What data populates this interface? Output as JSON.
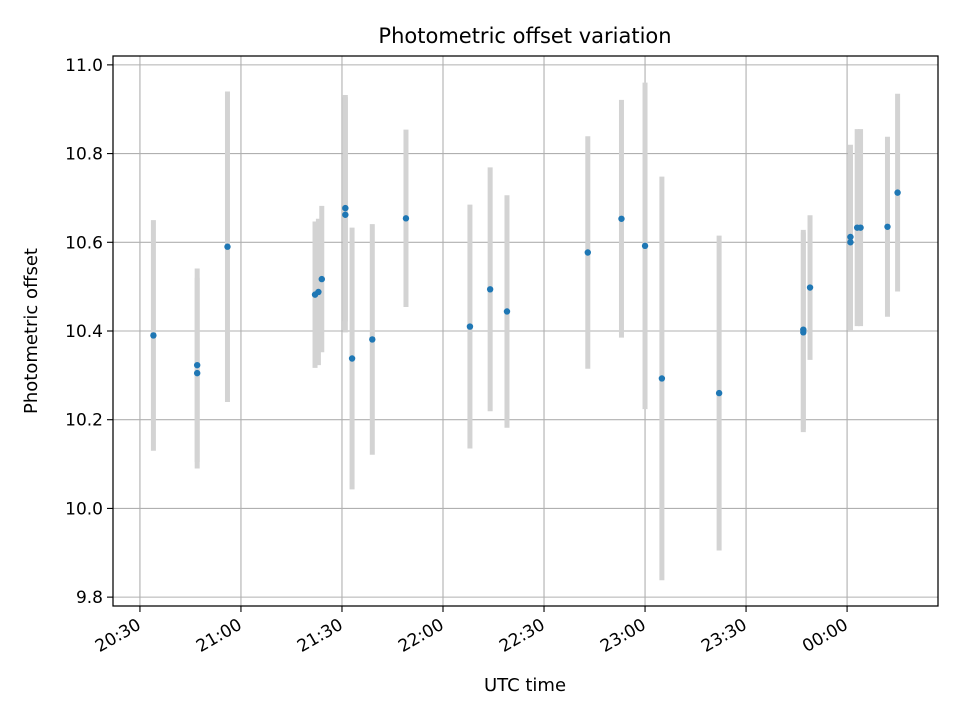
{
  "chart_data": {
    "type": "scatter",
    "title": "Photometric offset variation",
    "xlabel": "UTC time",
    "ylabel": "Photometric offset",
    "x_unit": "UTC hh:mm, minutes relative to 00:00 on the following day",
    "xlim_utc": [
      "20:22",
      "00:27"
    ],
    "ylim": [
      9.78,
      11.02
    ],
    "grid": true,
    "x_tick_labels": [
      "20:30",
      "21:00",
      "21:30",
      "22:00",
      "22:30",
      "23:00",
      "23:30",
      "00:00"
    ],
    "y_tick_labels": [
      "9.8",
      "10.0",
      "10.2",
      "10.4",
      "10.6",
      "10.8",
      "11.0"
    ],
    "colors": {
      "point": "#1f77b4",
      "errorbar": "#d3d3d3",
      "grid": "#b0b0b0"
    },
    "points": [
      {
        "t": "20:34",
        "y": 10.39,
        "err": 0.26
      },
      {
        "t": "20:47",
        "y": 10.305,
        "err": 0.215
      },
      {
        "t": "20:47",
        "y": 10.323,
        "err": 0.218
      },
      {
        "t": "20:56",
        "y": 10.59,
        "err": 0.35
      },
      {
        "t": "21:22",
        "y": 10.482,
        "err": 0.165
      },
      {
        "t": "21:23",
        "y": 10.488,
        "err": 0.165
      },
      {
        "t": "21:24",
        "y": 10.517,
        "err": 0.165
      },
      {
        "t": "21:31",
        "y": 10.677,
        "err": 0.255
      },
      {
        "t": "21:31",
        "y": 10.662,
        "err": 0.265
      },
      {
        "t": "21:33",
        "y": 10.338,
        "err": 0.295
      },
      {
        "t": "21:39",
        "y": 10.381,
        "err": 0.26
      },
      {
        "t": "21:49",
        "y": 10.654,
        "err": 0.2
      },
      {
        "t": "22:08",
        "y": 10.41,
        "err": 0.275
      },
      {
        "t": "22:14",
        "y": 10.494,
        "err": 0.275
      },
      {
        "t": "22:19",
        "y": 10.444,
        "err": 0.262
      },
      {
        "t": "22:43",
        "y": 10.577,
        "err": 0.262
      },
      {
        "t": "22:53",
        "y": 10.653,
        "err": 0.268
      },
      {
        "t": "23:00",
        "y": 10.592,
        "err": 0.368
      },
      {
        "t": "23:05",
        "y": 10.293,
        "err": 0.455
      },
      {
        "t": "23:22",
        "y": 10.26,
        "err": 0.355
      },
      {
        "t": "23:47",
        "y": 10.397,
        "err": 0.225
      },
      {
        "t": "23:47",
        "y": 10.403,
        "err": 0.225
      },
      {
        "t": "23:49",
        "y": 10.498,
        "err": 0.163
      },
      {
        "t": "00:01",
        "y": 10.612,
        "err": 0.208
      },
      {
        "t": "00:01",
        "y": 10.6,
        "err": 0.2
      },
      {
        "t": "00:03",
        "y": 10.633,
        "err": 0.222
      },
      {
        "t": "00:04",
        "y": 10.633,
        "err": 0.222
      },
      {
        "t": "00:12",
        "y": 10.635,
        "err": 0.203
      },
      {
        "t": "00:15",
        "y": 10.712,
        "err": 0.223
      }
    ]
  }
}
